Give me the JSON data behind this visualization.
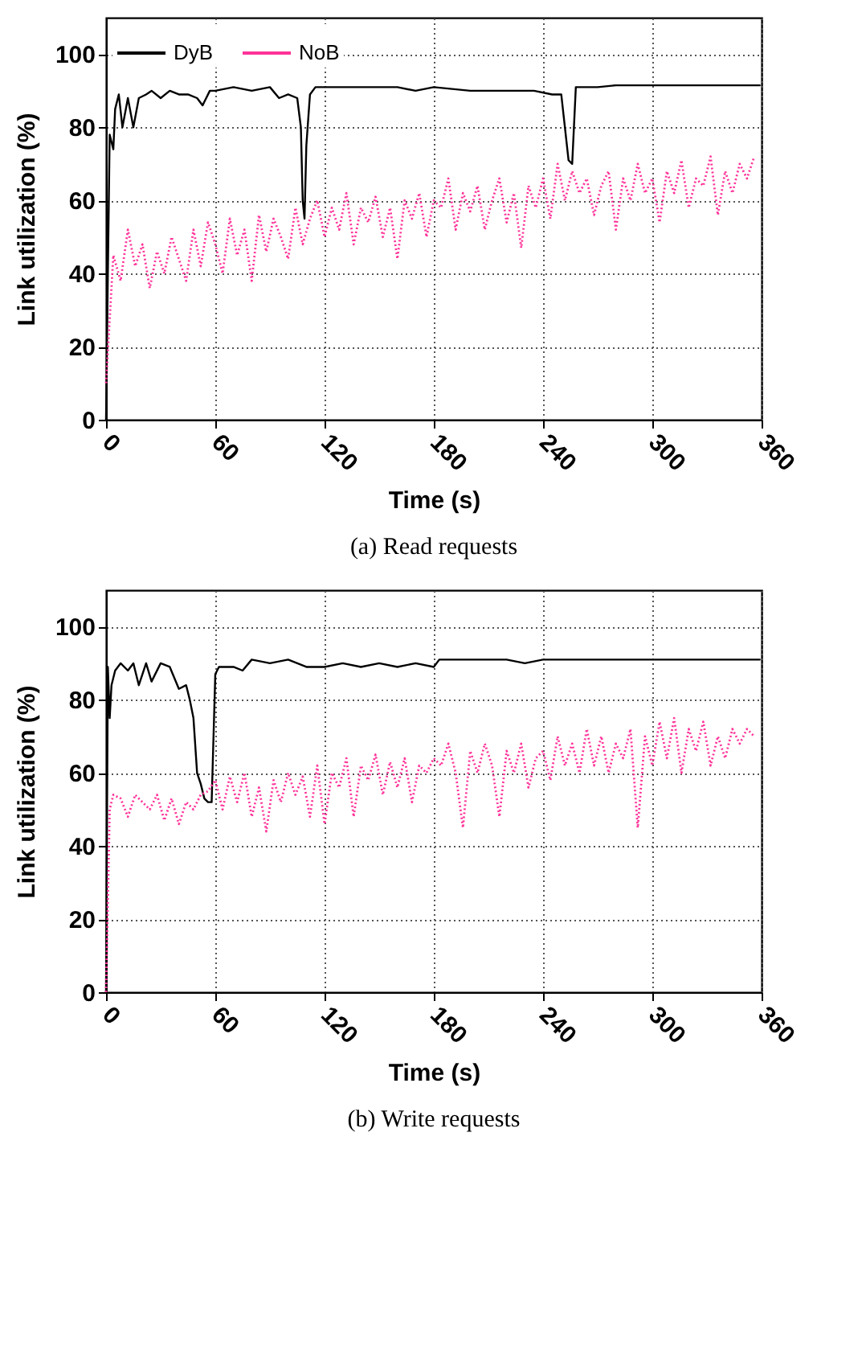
{
  "chart_data": [
    {
      "type": "line",
      "title": "(a)  Read requests",
      "xlabel": "Time (s)",
      "ylabel": "Link utilization (%)",
      "xlim": [
        0,
        360
      ],
      "xticks": [
        0,
        60,
        120,
        180,
        240,
        300,
        360
      ],
      "ylim": [
        0,
        110
      ],
      "yticks": [
        0,
        20,
        40,
        60,
        80,
        100
      ],
      "grid": true,
      "legend": "top left",
      "series": [
        {
          "name": "DyB",
          "color": "#000000",
          "line_style": "solid",
          "x": [
            0,
            1,
            2,
            4,
            5,
            7,
            9,
            12,
            15,
            18,
            22,
            25,
            30,
            35,
            40,
            45,
            50,
            53,
            57,
            60,
            70,
            80,
            90,
            95,
            100,
            105,
            107,
            108,
            109,
            110,
            112,
            115,
            120,
            140,
            160,
            170,
            180,
            200,
            220,
            235,
            245,
            250,
            252,
            254,
            256,
            258,
            260,
            270,
            280,
            300,
            330,
            359
          ],
          "values": [
            0,
            40,
            78,
            74,
            85,
            89,
            80,
            88,
            80,
            88,
            89,
            90,
            88,
            90,
            89,
            89,
            88,
            86,
            90,
            90,
            91,
            90,
            91,
            88,
            89,
            88,
            80,
            60,
            55,
            75,
            89,
            91,
            91,
            91,
            91,
            90,
            91,
            90,
            90,
            90,
            89,
            89,
            80,
            71,
            70,
            91,
            91,
            91,
            91.5,
            91.5,
            91.5,
            91.5
          ]
        },
        {
          "name": "NoB",
          "color": "#ff3399",
          "line_style": "dotted",
          "x": [
            0,
            4,
            8,
            12,
            16,
            20,
            24,
            28,
            32,
            36,
            40,
            44,
            48,
            52,
            56,
            60,
            64,
            68,
            72,
            76,
            80,
            84,
            88,
            92,
            96,
            100,
            104,
            108,
            112,
            116,
            120,
            124,
            128,
            132,
            136,
            140,
            144,
            148,
            152,
            156,
            160,
            164,
            168,
            172,
            176,
            180,
            184,
            188,
            192,
            196,
            200,
            204,
            208,
            212,
            216,
            220,
            224,
            228,
            232,
            236,
            240,
            244,
            248,
            252,
            256,
            260,
            264,
            268,
            272,
            276,
            280,
            284,
            288,
            292,
            296,
            300,
            304,
            308,
            312,
            316,
            320,
            324,
            328,
            332,
            336,
            340,
            344,
            348,
            352,
            356
          ],
          "values": [
            10,
            45,
            38,
            52,
            42,
            48,
            36,
            46,
            40,
            50,
            44,
            38,
            52,
            42,
            54,
            48,
            40,
            55,
            45,
            52,
            38,
            56,
            46,
            55,
            50,
            44,
            58,
            48,
            55,
            60,
            50,
            58,
            52,
            62,
            48,
            58,
            54,
            61,
            50,
            58,
            44,
            60,
            55,
            62,
            50,
            60,
            58,
            66,
            52,
            62,
            57,
            64,
            52,
            60,
            66,
            54,
            62,
            47,
            64,
            58,
            66,
            55,
            70,
            60,
            68,
            62,
            66,
            56,
            64,
            68,
            52,
            66,
            60,
            70,
            62,
            66,
            54,
            68,
            62,
            71,
            58,
            66,
            64,
            72,
            56,
            68,
            62,
            70,
            66,
            72
          ]
        }
      ]
    },
    {
      "type": "line",
      "title": "(b)  Write requests",
      "xlabel": "Time (s)",
      "ylabel": "Link utilization (%)",
      "xlim": [
        0,
        360
      ],
      "xticks": [
        0,
        60,
        120,
        180,
        240,
        300,
        360
      ],
      "ylim": [
        0,
        110
      ],
      "yticks": [
        0,
        20,
        40,
        60,
        80,
        100
      ],
      "grid": true,
      "legend": "top left",
      "series": [
        {
          "name": "DyB",
          "color": "#000000",
          "line_style": "solid",
          "x": [
            0,
            1,
            2,
            3,
            5,
            8,
            12,
            15,
            18,
            22,
            25,
            30,
            35,
            40,
            44,
            46,
            48,
            50,
            52,
            54,
            56,
            58,
            60,
            62,
            70,
            75,
            80,
            90,
            100,
            110,
            120,
            130,
            140,
            150,
            160,
            170,
            180,
            183,
            200,
            220,
            230,
            240,
            300,
            359
          ],
          "values": [
            0,
            89,
            75,
            84,
            88,
            90,
            88,
            90,
            84,
            90,
            85,
            90,
            89,
            83,
            84,
            80,
            75,
            60,
            57,
            53,
            52,
            52,
            87,
            89,
            89,
            88,
            91,
            90,
            91,
            89,
            89,
            90,
            89,
            90,
            89,
            90,
            89,
            91,
            91,
            91,
            90,
            91,
            91,
            91
          ]
        },
        {
          "name": "NoB",
          "color": "#ff3399",
          "line_style": "dotted",
          "x": [
            0,
            2,
            4,
            8,
            12,
            16,
            20,
            24,
            28,
            32,
            36,
            40,
            44,
            48,
            52,
            56,
            60,
            64,
            68,
            72,
            76,
            80,
            84,
            88,
            92,
            96,
            100,
            104,
            108,
            112,
            116,
            120,
            124,
            128,
            132,
            136,
            140,
            144,
            148,
            152,
            156,
            160,
            164,
            168,
            172,
            176,
            180,
            184,
            188,
            192,
            196,
            200,
            204,
            208,
            212,
            216,
            220,
            224,
            228,
            232,
            236,
            240,
            244,
            248,
            252,
            256,
            260,
            264,
            268,
            272,
            276,
            280,
            284,
            288,
            292,
            296,
            300,
            304,
            308,
            312,
            316,
            320,
            324,
            328,
            332,
            336,
            340,
            344,
            348,
            352,
            356
          ],
          "values": [
            0,
            50,
            54,
            53,
            48,
            54,
            52,
            50,
            54,
            47,
            53,
            46,
            52,
            50,
            54,
            55,
            58,
            50,
            59,
            52,
            60,
            48,
            56,
            44,
            58,
            52,
            60,
            54,
            59,
            48,
            62,
            46,
            60,
            56,
            64,
            48,
            62,
            58,
            65,
            54,
            63,
            56,
            64,
            52,
            62,
            60,
            64,
            62,
            68,
            60,
            45,
            66,
            60,
            68,
            62,
            48,
            66,
            60,
            68,
            56,
            64,
            66,
            58,
            70,
            62,
            68,
            60,
            72,
            62,
            70,
            60,
            68,
            64,
            72,
            45,
            70,
            62,
            74,
            64,
            75,
            60,
            72,
            66,
            74,
            62,
            70,
            64,
            72,
            68,
            72,
            70
          ]
        }
      ]
    }
  ]
}
